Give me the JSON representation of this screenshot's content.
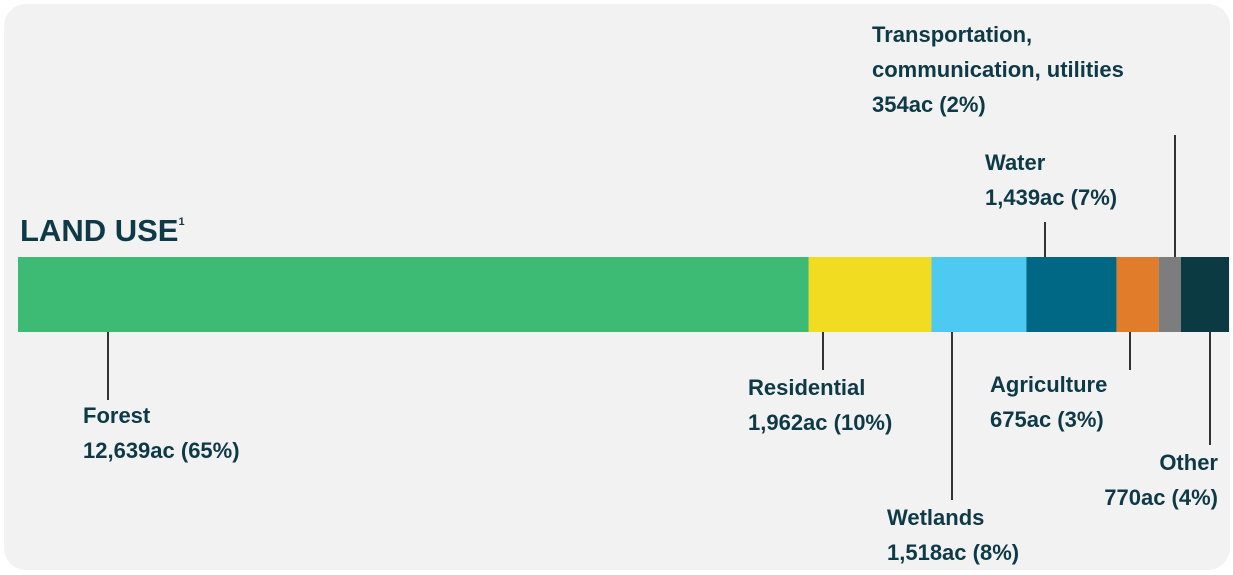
{
  "chart_data": {
    "type": "stacked-bar",
    "title": "LAND USE",
    "title_note": "1",
    "categories": [
      "Forest",
      "Residential",
      "Wetlands",
      "Water",
      "Agriculture",
      "Transportation, communication, utilities",
      "Other"
    ],
    "values": [
      12639,
      1962,
      1518,
      1439,
      675,
      354,
      770
    ],
    "value_labels": [
      "12,639ac (65%)",
      "1,962ac (10%)",
      "1,518ac (8%)",
      "1,439ac (7%)",
      "675ac (3%)",
      "354ac (2%)",
      "770ac (4%)"
    ],
    "colors": [
      "#3dba74",
      "#f2dc22",
      "#4dc9f2",
      "#006785",
      "#e07c2a",
      "#7d7d7d",
      "#0b3a42"
    ]
  }
}
